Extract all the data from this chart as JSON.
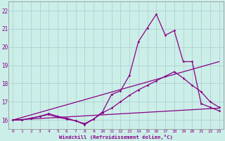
{
  "background_color": "#cceee8",
  "grid_color": "#aacccc",
  "line_color": "#880088",
  "xlim": [
    -0.5,
    23.5
  ],
  "ylim": [
    15.5,
    22.5
  ],
  "xticks": [
    0,
    1,
    2,
    3,
    4,
    5,
    6,
    7,
    8,
    9,
    10,
    11,
    12,
    13,
    14,
    15,
    16,
    17,
    18,
    19,
    20,
    21,
    22,
    23
  ],
  "yticks": [
    16,
    17,
    18,
    19,
    20,
    21,
    22
  ],
  "xlabel": "Windchill (Refroidissement éolien,°C)",
  "curve_spiky": {
    "x": [
      0,
      1,
      2,
      3,
      4,
      5,
      6,
      7,
      8,
      9,
      10,
      11,
      12,
      13,
      14,
      15,
      16,
      17,
      18,
      19,
      20,
      21,
      22,
      23
    ],
    "y": [
      16.0,
      16.0,
      16.1,
      16.2,
      16.3,
      16.15,
      16.05,
      15.95,
      15.75,
      16.05,
      16.45,
      17.4,
      17.6,
      18.45,
      20.3,
      21.05,
      21.8,
      20.65,
      20.9,
      19.2,
      19.2,
      16.9,
      16.7,
      16.5
    ]
  },
  "curve_medium": {
    "x": [
      0,
      1,
      2,
      3,
      4,
      5,
      6,
      7,
      8,
      9,
      10,
      11,
      12,
      13,
      14,
      15,
      16,
      17,
      18,
      19,
      20,
      21,
      22,
      23
    ],
    "y": [
      16.0,
      16.0,
      16.1,
      16.2,
      16.35,
      16.2,
      16.1,
      15.95,
      15.8,
      16.05,
      16.4,
      16.65,
      17.0,
      17.35,
      17.65,
      17.9,
      18.15,
      18.4,
      18.65,
      18.3,
      17.9,
      17.55,
      17.0,
      16.7
    ]
  },
  "line1": {
    "x": [
      0,
      23
    ],
    "y": [
      16.0,
      16.65
    ]
  },
  "line2": {
    "x": [
      0,
      23
    ],
    "y": [
      16.0,
      19.2
    ]
  }
}
